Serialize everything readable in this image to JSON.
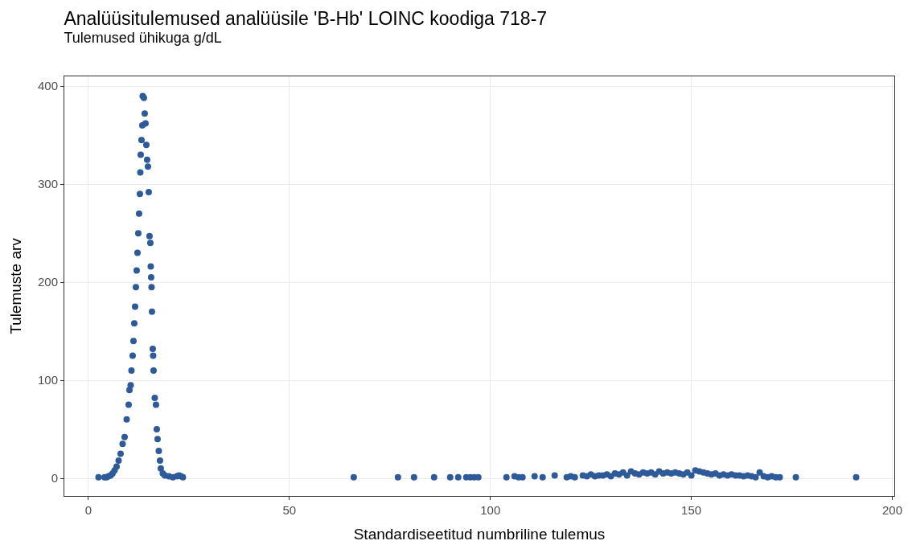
{
  "chart_data": {
    "type": "scatter",
    "title": "Analüüsitulemused analüüsile 'B-Hb' LOINC koodiga 718-7",
    "subtitle": "Tulemused ühikuga g/dL",
    "xlabel": "Standardiseetitud numbriline tulemus",
    "ylabel": "Tulemuste arv",
    "x": [
      2.5,
      4,
      4.5,
      5,
      5.5,
      6,
      6.5,
      7,
      7.5,
      8,
      8.5,
      9,
      9.5,
      10,
      10.2,
      10.5,
      10.7,
      11,
      11.2,
      11.4,
      11.6,
      11.8,
      12,
      12.2,
      12.4,
      12.6,
      12.8,
      12.9,
      13,
      13.2,
      13.4,
      13.5,
      13.8,
      14,
      14.2,
      14.4,
      14.6,
      14.8,
      15,
      15.2,
      15.4,
      15.5,
      15.6,
      15.7,
      15.8,
      16,
      16.1,
      16.2,
      16.5,
      16.8,
      17,
      17.2,
      17.5,
      17.8,
      18,
      18.5,
      19,
      20,
      21,
      22,
      22.5,
      23,
      23.5,
      66,
      77,
      81,
      86,
      90,
      92,
      94,
      95,
      96,
      97,
      104,
      106,
      107,
      108,
      111,
      113,
      116,
      119,
      120,
      121,
      123,
      124,
      125,
      126,
      127,
      128,
      129,
      130,
      131,
      132,
      133,
      134,
      135,
      136,
      137,
      138,
      139,
      140,
      141,
      142,
      143,
      144,
      145,
      146,
      147,
      148,
      149,
      150,
      151,
      152,
      153,
      154,
      155,
      156,
      157,
      158,
      159,
      160,
      161,
      162,
      163,
      164,
      165,
      166,
      167,
      168,
      169,
      170,
      171,
      172,
      176,
      191
    ],
    "series": [
      {
        "color": "#2e5a99",
        "values": [
          1,
          1,
          1,
          2,
          3,
          5,
          8,
          12,
          18,
          25,
          35,
          42,
          60,
          75,
          90,
          95,
          110,
          125,
          140,
          158,
          175,
          195,
          212,
          230,
          250,
          270,
          290,
          312,
          330,
          345,
          360,
          390,
          388,
          372,
          362,
          340,
          325,
          318,
          292,
          247,
          240,
          216,
          205,
          195,
          170,
          132,
          125,
          110,
          82,
          75,
          50,
          40,
          28,
          18,
          10,
          5,
          3,
          2,
          1,
          2,
          3,
          2,
          1,
          1,
          1,
          1,
          1,
          1,
          1,
          1,
          1,
          1,
          1,
          1,
          2,
          1,
          1,
          2,
          1,
          3,
          1,
          2,
          1,
          3,
          2,
          4,
          2,
          3,
          3,
          4,
          2,
          5,
          4,
          6,
          3,
          7,
          5,
          4,
          6,
          5,
          6,
          4,
          7,
          5,
          6,
          5,
          6,
          5,
          4,
          6,
          3,
          8,
          7,
          6,
          5,
          4,
          5,
          3,
          4,
          3,
          4,
          3,
          3,
          2,
          3,
          2,
          1,
          6,
          2,
          1,
          2,
          1,
          1,
          1,
          1
        ]
      }
    ],
    "xlim": [
      -6,
      200.5
    ],
    "ylim": [
      -18,
      410
    ],
    "xticks": [
      0,
      50,
      100,
      150,
      200
    ],
    "yticks": [
      0,
      100,
      200,
      300,
      400
    ],
    "grid": true,
    "marker": "circle"
  }
}
